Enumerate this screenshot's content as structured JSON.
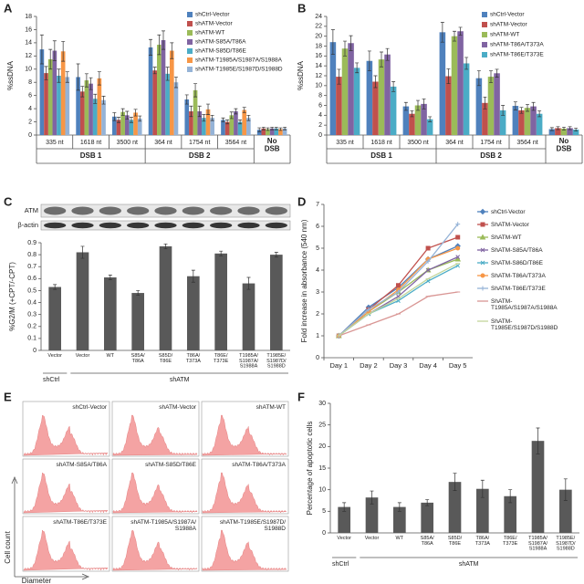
{
  "chart_data": [
    {
      "type": "bar",
      "label": "A",
      "ylabel": "%ssDNA",
      "categories": [
        "335  nt",
        "1618 nt",
        "3500 nt",
        "364  nt",
        "1754 nt",
        "3564 nt",
        null
      ],
      "groups": [
        "DSB 1",
        "DSB 1",
        "DSB 1",
        "DSB 2",
        "DSB 2",
        "DSB 2",
        "No DSB"
      ],
      "ylim": [
        0,
        18
      ],
      "yticks": [
        0,
        2,
        4,
        6,
        8,
        10,
        12,
        14,
        16,
        18
      ],
      "legend": "upper right",
      "series": [
        {
          "name": "shCtrl-Vector",
          "color": "#4f81bd",
          "values": [
            13,
            8.8,
            2.8,
            13.3,
            5.4,
            2.3,
            0.8
          ],
          "errors": [
            2.2,
            2,
            0.6,
            1.2,
            0.7,
            0.3,
            0.3
          ]
        },
        {
          "name": "shATM-Vector",
          "color": "#c0504d",
          "values": [
            9.4,
            6.6,
            2.3,
            9.8,
            3.6,
            2.0,
            1.0
          ],
          "errors": [
            1,
            0.8,
            0.4,
            0.5,
            0.8,
            0.3,
            0.2
          ]
        },
        {
          "name": "shATM-WT",
          "color": "#9bbb59",
          "values": [
            11.5,
            8.3,
            3.5,
            13.7,
            6.8,
            3.0,
            0.9
          ],
          "errors": [
            1.5,
            1,
            0.5,
            1.5,
            1,
            0.5,
            0.2
          ]
        },
        {
          "name": "shATM-S85A/T86A",
          "color": "#8064a2",
          "values": [
            12.8,
            7.8,
            3.0,
            14.4,
            3.6,
            3.6,
            1.0
          ],
          "errors": [
            1.5,
            0.9,
            0.6,
            1.4,
            0.8,
            0.4,
            0.2
          ]
        },
        {
          "name": "shATM-S85D/T86E",
          "color": "#4bacc6",
          "values": [
            9.0,
            5.5,
            2.3,
            9.3,
            2.6,
            2.0,
            1.0
          ],
          "errors": [
            1,
            0.7,
            0.4,
            1,
            0.5,
            0.3,
            0.2
          ]
        },
        {
          "name": "shATM-T1985A/S1987A/S1988A",
          "color": "#f79646",
          "values": [
            12.7,
            8.6,
            3.4,
            12.8,
            3.9,
            3.8,
            0.9
          ],
          "errors": [
            1.5,
            1,
            0.5,
            1.2,
            0.8,
            0.4,
            0.2
          ]
        },
        {
          "name": "shATM-T1985E/S1987D/S1988D",
          "color": "#95b3d7",
          "values": [
            8.8,
            5.3,
            2.5,
            8.0,
            2.6,
            2.6,
            1.0
          ],
          "errors": [
            0.8,
            0.6,
            0.4,
            0.8,
            0.4,
            0.4,
            0.2
          ]
        }
      ]
    },
    {
      "type": "bar",
      "label": "B",
      "ylabel": "%ssDNA",
      "categories": [
        "335  nt",
        "1618 nt",
        "3500 nt",
        "364  nt",
        "1754 nt",
        "3564 nt",
        null
      ],
      "groups": [
        "DSB 1",
        "DSB 1",
        "DSB 1",
        "DSB 2",
        "DSB 2",
        "DSB 2",
        "No DSB"
      ],
      "ylim": [
        0,
        24
      ],
      "yticks": [
        0,
        2,
        4,
        6,
        8,
        10,
        12,
        14,
        16,
        18,
        20,
        22,
        24
      ],
      "legend": "upper right",
      "series": [
        {
          "name": "shCtrl-Vector",
          "color": "#4f81bd",
          "values": [
            18.8,
            15,
            5.8,
            20.8,
            11.5,
            5.9,
            1.2
          ],
          "errors": [
            2.5,
            2,
            0.8,
            2,
            1.5,
            0.8,
            0.3
          ]
        },
        {
          "name": "shATM-Vector",
          "color": "#c0504d",
          "values": [
            11.8,
            10.8,
            4.3,
            11.9,
            6.5,
            5,
            1.4
          ],
          "errors": [
            1.5,
            1.2,
            0.6,
            1.5,
            1.2,
            0.6,
            0.3
          ]
        },
        {
          "name": "shATM-WT",
          "color": "#9bbb59",
          "values": [
            17.5,
            15.3,
            6,
            20,
            11.8,
            5.5,
            1.3
          ],
          "errors": [
            1.5,
            1.5,
            1,
            1,
            1.2,
            0.7,
            0.3
          ]
        },
        {
          "name": "shATM-T86A/T373A",
          "color": "#8064a2",
          "values": [
            18.6,
            16.3,
            6.3,
            21,
            12.5,
            5.8,
            1.4
          ],
          "errors": [
            1.5,
            1.2,
            1,
            0.8,
            0.8,
            0.8,
            0.3
          ]
        },
        {
          "name": "shATM-T86E/T373E",
          "color": "#4bacc6",
          "values": [
            13.6,
            9.8,
            3.2,
            14.5,
            5,
            4.3,
            1.1
          ],
          "errors": [
            1,
            1,
            0.5,
            1.2,
            1,
            0.6,
            0.3
          ]
        }
      ]
    },
    {
      "type": "bar",
      "label": "C",
      "ylabel": "%G2/M (+CPT/-CPT)",
      "blot": [
        "ATM",
        "β-actin"
      ],
      "categories": [
        "Vector",
        "Vector",
        "WT",
        "S85A/T86A",
        "S85D/T86E",
        "T86A/T373A",
        "T86E/T373E",
        "T1985A/S1987A/S1988A",
        "T1985E/S1987D/S1988D"
      ],
      "groups": [
        "shCtrl",
        "shATM",
        "shATM",
        "shATM",
        "shATM",
        "shATM",
        "shATM",
        "shATM",
        "shATM"
      ],
      "ylim": [
        0,
        0.9
      ],
      "yticks": [
        0,
        0.1,
        0.2,
        0.3,
        0.4,
        0.5,
        0.6,
        0.7,
        0.8,
        0.9
      ],
      "color": "#595959",
      "values": [
        0.53,
        0.82,
        0.61,
        0.48,
        0.87,
        0.62,
        0.81,
        0.56,
        0.8
      ],
      "errors": [
        0.02,
        0.05,
        0.02,
        0.02,
        0.02,
        0.05,
        0.02,
        0.05,
        0.02
      ]
    },
    {
      "type": "line",
      "label": "D",
      "ylabel": "Fold increase in absorbance (540 nm)",
      "categories": [
        "Day 1",
        "Day 2",
        "Day 3",
        "Day 4",
        "Day 5"
      ],
      "ylim": [
        0,
        7
      ],
      "yticks": [
        0,
        1,
        2,
        3,
        4,
        5,
        6,
        7
      ],
      "legend": "right",
      "series": [
        {
          "name": "shCtrl-Vector",
          "color": "#4f81bd",
          "values": [
            1,
            2.3,
            3.2,
            4.5,
            5.1
          ]
        },
        {
          "name": "ShATM-Vector",
          "color": "#c0504d",
          "values": [
            1,
            2.2,
            3.3,
            5.0,
            5.5
          ]
        },
        {
          "name": "ShATM-WT",
          "color": "#9bbb59",
          "values": [
            1,
            2.1,
            3.0,
            4.0,
            4.5
          ]
        },
        {
          "name": "ShATM-S85A/T86A",
          "color": "#8064a2",
          "values": [
            1,
            2.0,
            2.8,
            4.0,
            4.6
          ]
        },
        {
          "name": "ShATM-S86D/T86E",
          "color": "#4bacc6",
          "values": [
            1,
            2.0,
            2.6,
            3.5,
            4.2
          ]
        },
        {
          "name": "ShATM-T86A/T373A",
          "color": "#f79646",
          "values": [
            1,
            2.1,
            3.1,
            4.5,
            5.0
          ]
        },
        {
          "name": "ShATM-T86E/T373E",
          "color": "#95b3d7",
          "values": [
            1,
            2.2,
            3.0,
            4.4,
            6.1
          ]
        },
        {
          "name": "ShATM-T1985A/S1987A/S1988A",
          "color": "#d99694",
          "values": [
            1,
            1.5,
            2.0,
            2.8,
            3.0
          ]
        },
        {
          "name": "ShATM-T1985E/S1987D/S1988D",
          "color": "#c3d69b",
          "values": [
            1,
            2.0,
            2.7,
            3.6,
            4.3
          ]
        }
      ]
    },
    {
      "type": "panels",
      "label": "E",
      "xlabel": "Diameter",
      "ylabel": "Cell count",
      "labels": [
        "shCtrl-Vector",
        "shATM-Vector",
        "shATM-WT",
        "shATM-S85A/T86A",
        "shATM-S85D/T86E",
        "shATM-T86A/T373A",
        "shATM-T86E/T373E",
        "shATM-T1985A/S1987A/S1988A",
        "shATM-T1985E/S1987D/S1988D"
      ]
    },
    {
      "type": "bar",
      "label": "F",
      "ylabel": "Percentage of apoptotic cells",
      "categories": [
        "Vector",
        "Vector",
        "WT",
        "S85A/T86A",
        "S85D/T86E",
        "T86A/T373A",
        "T86E/T373E",
        "T1985A/S1987A/S1988A",
        "T1985E/S1987D/S1988D"
      ],
      "groups": [
        "shCtrl",
        "shATM",
        "shATM",
        "shATM",
        "shATM",
        "shATM",
        "shATM",
        "shATM",
        "shATM"
      ],
      "ylim": [
        0,
        30
      ],
      "yticks": [
        0,
        5,
        10,
        15,
        20,
        25,
        30
      ],
      "color": "#595959",
      "values": [
        6,
        8.2,
        6,
        7,
        11.8,
        10.2,
        8.5,
        21.3,
        10
      ],
      "errors": [
        1,
        1.5,
        1,
        0.7,
        2,
        2,
        1.5,
        3,
        2.5
      ]
    }
  ]
}
